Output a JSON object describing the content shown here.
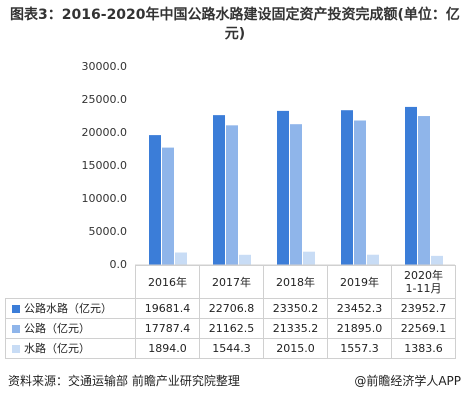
{
  "chart_data": {
    "type": "bar",
    "title": "图表3：2016-2020年中国公路水路建设固定资产投资完成额(单位：亿元)",
    "categories": [
      "2016年",
      "2017年",
      "2018年",
      "2019年",
      "2020年1-11月"
    ],
    "series": [
      {
        "name": "公路水路（亿元）",
        "color": "#3b7dd8",
        "values": [
          19681.4,
          22706.8,
          23350.2,
          23452.3,
          23952.7
        ]
      },
      {
        "name": "公路（亿元）",
        "color": "#8fb5ea",
        "values": [
          17787.4,
          21162.5,
          21335.2,
          21895.0,
          22569.1
        ],
        "value_labels": [
          "17787.4",
          "21162.5",
          "21335.2",
          "21895.0",
          "22569.1"
        ]
      },
      {
        "name": "水路（亿元）",
        "color": "#c8dcf5",
        "values": [
          1894.0,
          1544.3,
          2015.0,
          1557.3,
          1383.6
        ],
        "value_labels": [
          "1894.0",
          "1544.3",
          "2015.0",
          "1557.3",
          "1383.6"
        ]
      }
    ],
    "ylim": [
      0,
      30000
    ],
    "yticks": [
      {
        "value": 0,
        "label": "0.0"
      },
      {
        "value": 5000,
        "label": "5000.0"
      },
      {
        "value": 10000,
        "label": "10000.0"
      },
      {
        "value": 15000,
        "label": "15000.0"
      },
      {
        "value": 20000,
        "label": "20000.0"
      },
      {
        "value": 25000,
        "label": "25000.0"
      },
      {
        "value": 30000,
        "label": "30000.0"
      }
    ],
    "grid": false,
    "source": "资料来源：交通运输部 前瞻产业研究院整理",
    "credit": "@前瞻经济学人APP"
  }
}
